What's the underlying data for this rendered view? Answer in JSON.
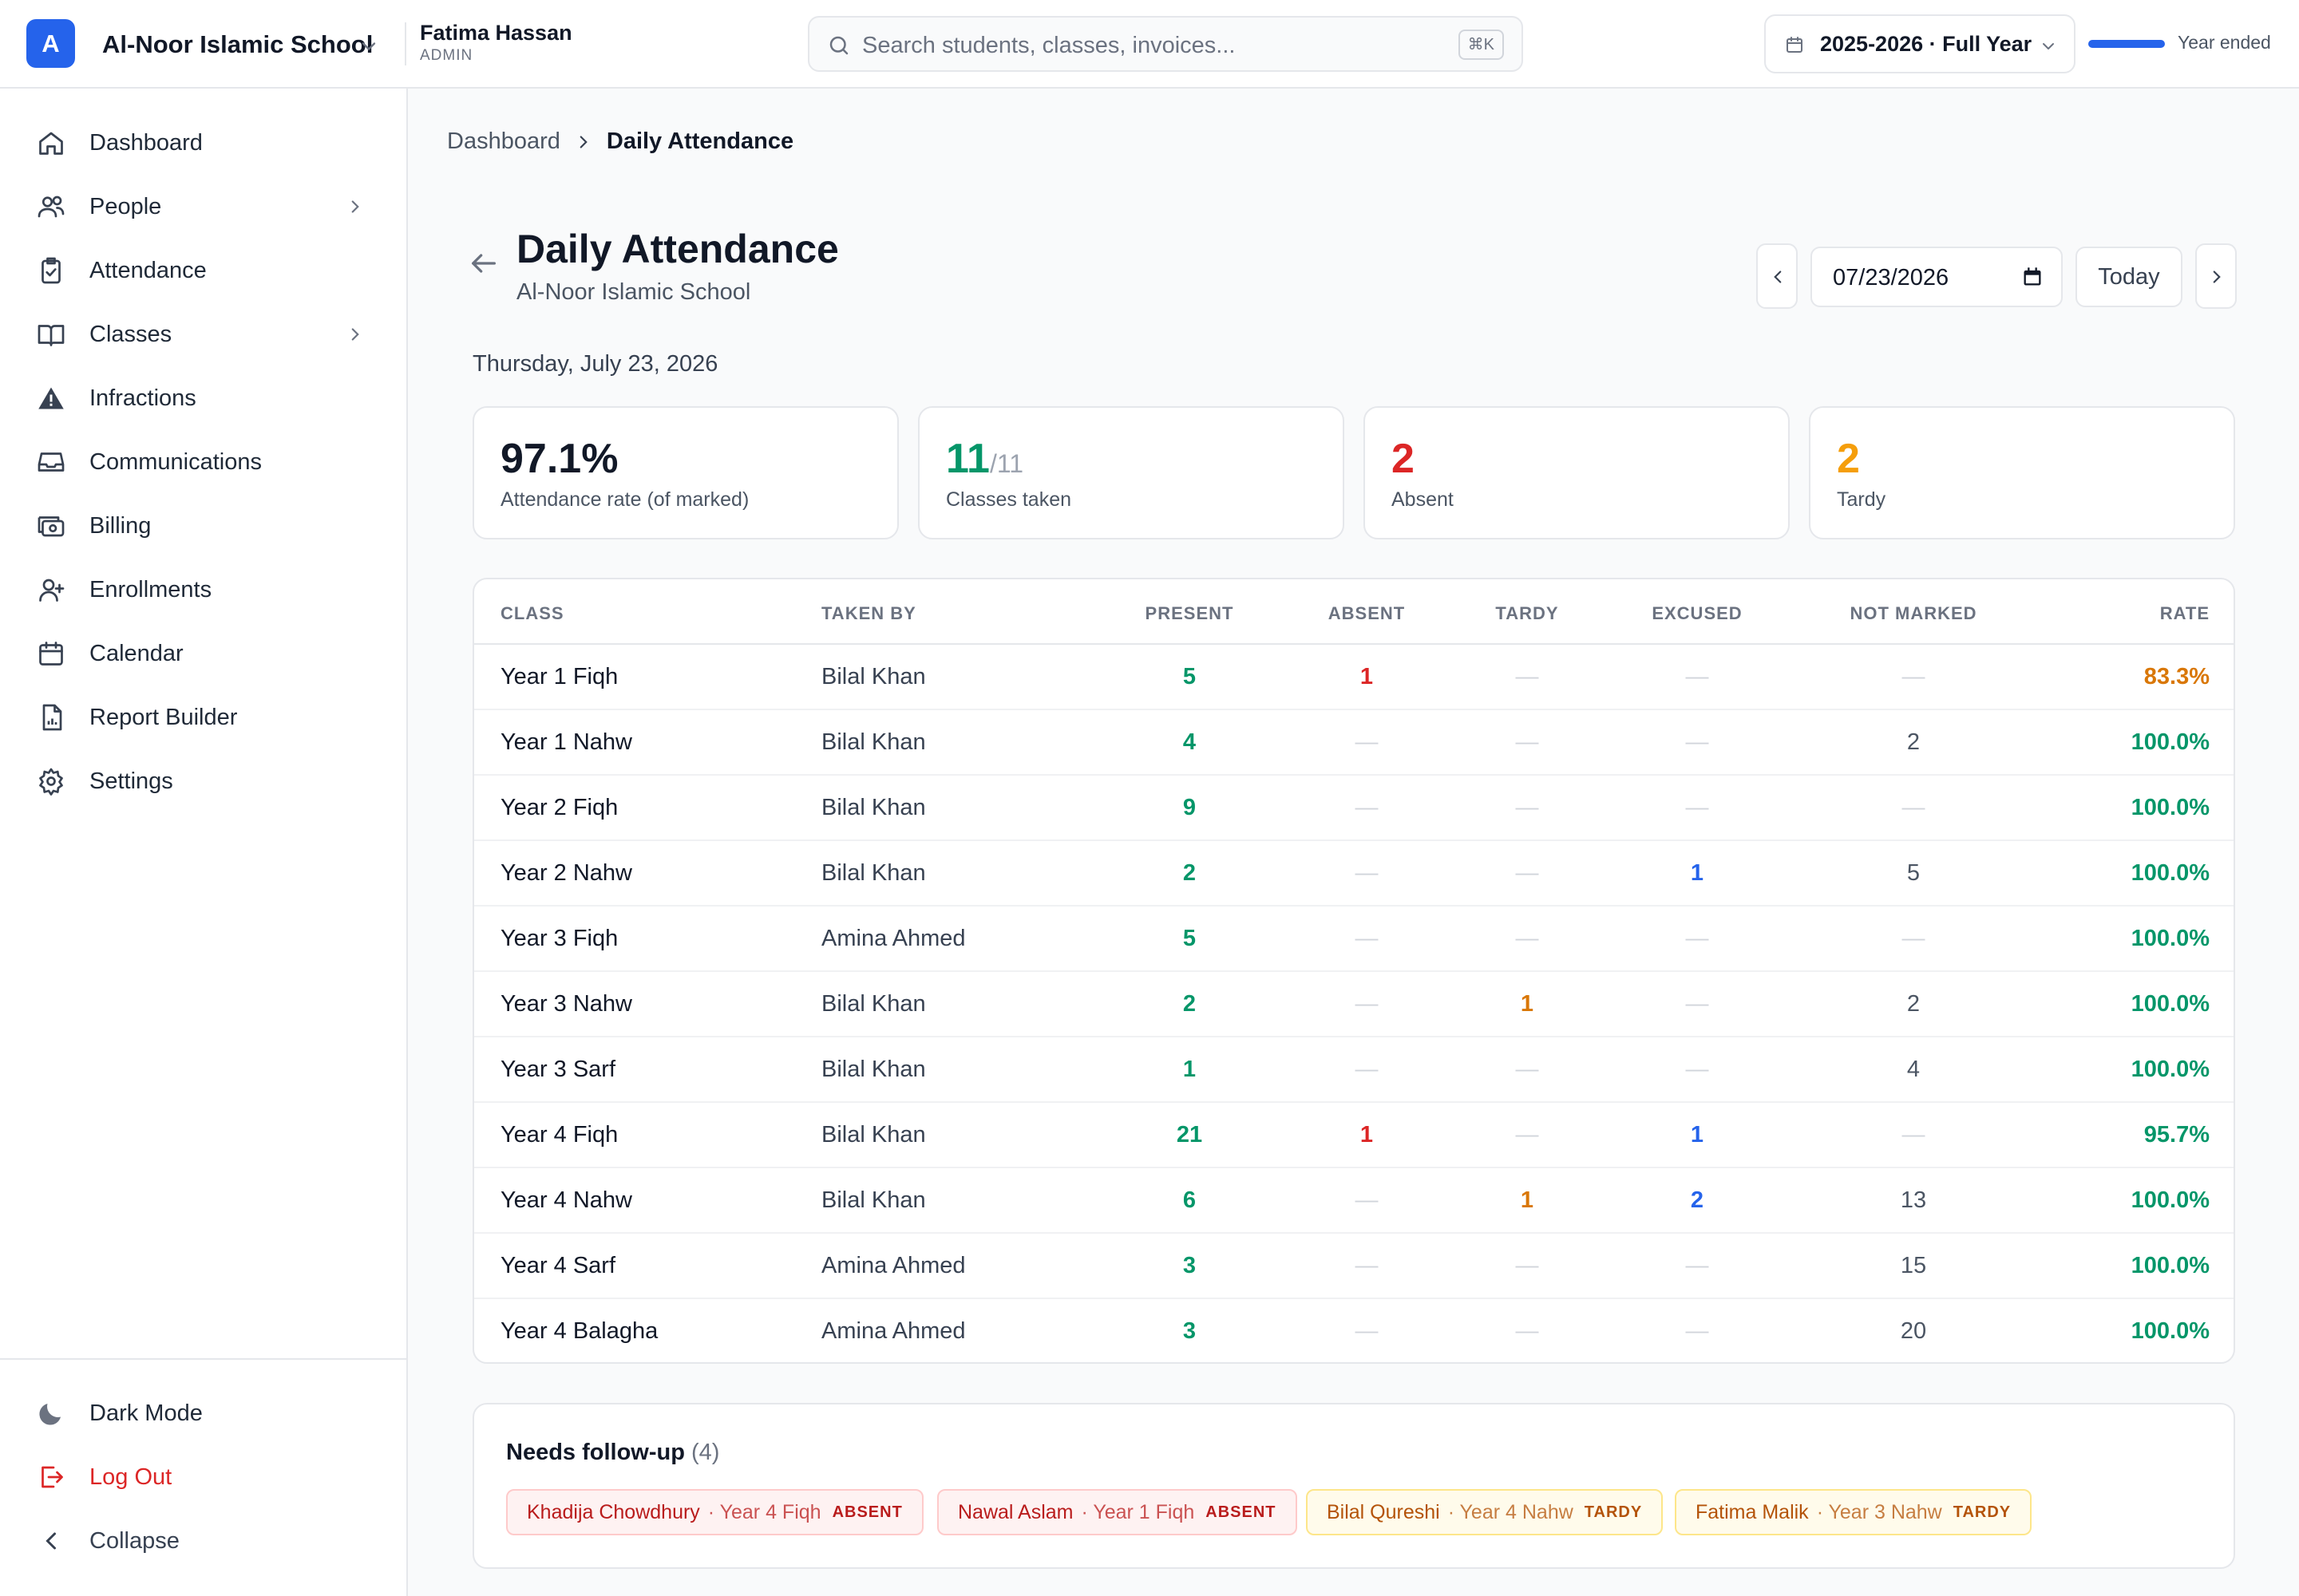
{
  "header": {
    "logo_letter": "A",
    "school_name": "Al-Noor Islamic School",
    "user_name": "Fatima Hassan",
    "user_role": "ADMIN",
    "search_placeholder": "Search students, classes, invoices...",
    "search_shortcut": "⌘K",
    "year_label": "2025-2026 · Full Year",
    "year_progress": 1.0,
    "year_status": "Year ended"
  },
  "sidebar": {
    "items": [
      {
        "label": "Dashboard",
        "icon": "home-icon"
      },
      {
        "label": "People",
        "icon": "users-icon",
        "has_children": true
      },
      {
        "label": "Attendance",
        "icon": "clipboard-check-icon"
      },
      {
        "label": "Classes",
        "icon": "book-icon",
        "has_children": true
      },
      {
        "label": "Infractions",
        "icon": "warning-icon"
      },
      {
        "label": "Communications",
        "icon": "inbox-icon"
      },
      {
        "label": "Billing",
        "icon": "billing-icon"
      },
      {
        "label": "Enrollments",
        "icon": "user-plus-icon"
      },
      {
        "label": "Calendar",
        "icon": "calendar-icon"
      },
      {
        "label": "Report Builder",
        "icon": "report-icon"
      },
      {
        "label": "Settings",
        "icon": "gear-icon"
      }
    ],
    "dark_mode": "Dark Mode",
    "logout": "Log Out",
    "collapse": "Collapse"
  },
  "breadcrumb": {
    "parent": "Dashboard",
    "current": "Daily Attendance"
  },
  "page": {
    "title": "Daily Attendance",
    "subtitle": "Al-Noor Islamic School",
    "date_value": "07/23/2026",
    "today_label": "Today",
    "full_date": "Thursday, July 23, 2026"
  },
  "stats": {
    "rate": {
      "value": "97.1%",
      "label": "Attendance rate (of marked)"
    },
    "classes": {
      "value": "11",
      "denominator": "/11",
      "label": "Classes taken"
    },
    "absent": {
      "value": "2",
      "label": "Absent"
    },
    "tardy": {
      "value": "2",
      "label": "Tardy"
    }
  },
  "colors": {
    "accent": "#2563eb",
    "present": "#059669",
    "absent": "#dc2626",
    "tardy": "#d97706",
    "excused": "#2563eb"
  },
  "table": {
    "headers": {
      "class": "CLASS",
      "taken_by": "TAKEN BY",
      "present": "PRESENT",
      "absent": "ABSENT",
      "tardy": "TARDY",
      "excused": "EXCUSED",
      "not_marked": "NOT MARKED",
      "rate": "RATE"
    },
    "rows": [
      {
        "class": "Year 1 Fiqh",
        "taken_by": "Bilal Khan",
        "present": "5",
        "absent": "1",
        "tardy": "—",
        "excused": "—",
        "not_marked": "—",
        "rate": "83.3%"
      },
      {
        "class": "Year 1 Nahw",
        "taken_by": "Bilal Khan",
        "present": "4",
        "absent": "—",
        "tardy": "—",
        "excused": "—",
        "not_marked": "2",
        "rate": "100.0%"
      },
      {
        "class": "Year 2 Fiqh",
        "taken_by": "Bilal Khan",
        "present": "9",
        "absent": "—",
        "tardy": "—",
        "excused": "—",
        "not_marked": "—",
        "rate": "100.0%"
      },
      {
        "class": "Year 2 Nahw",
        "taken_by": "Bilal Khan",
        "present": "2",
        "absent": "—",
        "tardy": "—",
        "excused": "1",
        "not_marked": "5",
        "rate": "100.0%"
      },
      {
        "class": "Year 3 Fiqh",
        "taken_by": "Amina Ahmed",
        "present": "5",
        "absent": "—",
        "tardy": "—",
        "excused": "—",
        "not_marked": "—",
        "rate": "100.0%"
      },
      {
        "class": "Year 3 Nahw",
        "taken_by": "Bilal Khan",
        "present": "2",
        "absent": "—",
        "tardy": "1",
        "excused": "—",
        "not_marked": "2",
        "rate": "100.0%"
      },
      {
        "class": "Year 3 Sarf",
        "taken_by": "Bilal Khan",
        "present": "1",
        "absent": "—",
        "tardy": "—",
        "excused": "—",
        "not_marked": "4",
        "rate": "100.0%"
      },
      {
        "class": "Year 4 Fiqh",
        "taken_by": "Bilal Khan",
        "present": "21",
        "absent": "1",
        "tardy": "—",
        "excused": "1",
        "not_marked": "—",
        "rate": "95.7%"
      },
      {
        "class": "Year 4 Nahw",
        "taken_by": "Bilal Khan",
        "present": "6",
        "absent": "—",
        "tardy": "1",
        "excused": "2",
        "not_marked": "13",
        "rate": "100.0%"
      },
      {
        "class": "Year 4 Sarf",
        "taken_by": "Amina Ahmed",
        "present": "3",
        "absent": "—",
        "tardy": "—",
        "excused": "—",
        "not_marked": "15",
        "rate": "100.0%"
      },
      {
        "class": "Year 4 Balagha",
        "taken_by": "Amina Ahmed",
        "present": "3",
        "absent": "—",
        "tardy": "—",
        "excused": "—",
        "not_marked": "20",
        "rate": "100.0%"
      }
    ]
  },
  "followup": {
    "title": "Needs follow-up",
    "count": "(4)",
    "items": [
      {
        "name": "Khadija Chowdhury",
        "class": "· Year 4 Fiqh",
        "status": "ABSENT"
      },
      {
        "name": "Nawal Aslam",
        "class": "· Year 1 Fiqh",
        "status": "ABSENT"
      },
      {
        "name": "Bilal Qureshi",
        "class": "· Year 4 Nahw",
        "status": "TARDY"
      },
      {
        "name": "Fatima Malik",
        "class": "· Year 3 Nahw",
        "status": "TARDY"
      }
    ]
  }
}
